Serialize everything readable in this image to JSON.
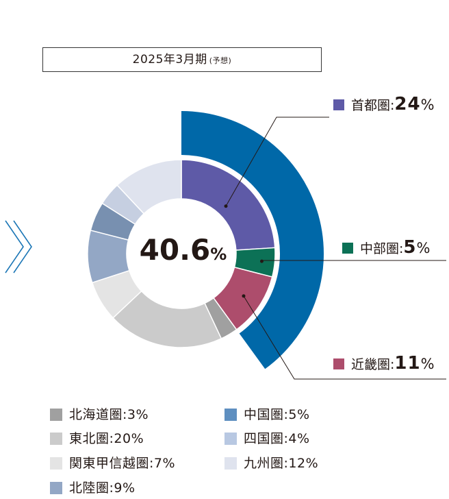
{
  "period": {
    "title": "2025年3月期",
    "note": "(予想)"
  },
  "center": {
    "value": "40.6",
    "unit": "%"
  },
  "colors": {
    "outer_arc": "#0068a8",
    "arrow": "#1b76b6",
    "leader": "#231815"
  },
  "chart_data": {
    "type": "pie",
    "title": "2025年3月期(予想)",
    "center_value": 40.6,
    "center_unit": "%",
    "start": "12 o'clock, clockwise",
    "outer_arc": {
      "covers": [
        "首都圏",
        "中部圏",
        "近畿圏"
      ],
      "value": 40
    },
    "slices": [
      {
        "name": "首都圏",
        "value": 24,
        "color": "#5e5aa7",
        "highlight": true
      },
      {
        "name": "中部圏",
        "value": 5,
        "color": "#0c7156",
        "highlight": true
      },
      {
        "name": "近畿圏",
        "value": 11,
        "color": "#ad4d6c",
        "highlight": true
      },
      {
        "name": "北海道圏",
        "value": 3,
        "color": "#a0a0a0",
        "highlight": false
      },
      {
        "name": "東北圏",
        "value": 20,
        "color": "#cbcbcb",
        "highlight": false
      },
      {
        "name": "関東甲信越圏",
        "value": 7,
        "color": "#e4e4e4",
        "highlight": false
      },
      {
        "name": "北陸圏",
        "value": 9,
        "color": "#93a7c5",
        "highlight": false
      },
      {
        "name": "中国圏",
        "value": 5,
        "color": "#7890b0",
        "highlight": false
      },
      {
        "name": "四国圏",
        "value": 4,
        "color": "#c6cfe1",
        "highlight": false
      },
      {
        "name": "九州圏",
        "value": 12,
        "color": "#dfe3ee",
        "highlight": false
      }
    ]
  },
  "callouts": [
    {
      "label": "首都圏:",
      "value": "24",
      "unit": "%",
      "color": "#5e5aa7"
    },
    {
      "label": "中部圏:",
      "value": "5",
      "unit": "%",
      "color": "#0c7156"
    },
    {
      "label": "近畿圏:",
      "value": "11",
      "unit": "%",
      "color": "#ad4d6c"
    }
  ],
  "legend": [
    {
      "label": "北海道圏:3%",
      "color": "#a0a0a0"
    },
    {
      "label": "東北圏:20%",
      "color": "#cbcbcb"
    },
    {
      "label": "関東甲信越圏:7%",
      "color": "#e4e4e4"
    },
    {
      "label": "北陸圏:9%",
      "color": "#93a7c5"
    },
    {
      "label": "中国圏:5%",
      "color": "#5e8fc0"
    },
    {
      "label": "四国圏:4%",
      "color": "#b8c8e2"
    },
    {
      "label": "九州圏:12%",
      "color": "#dfe3ee"
    }
  ]
}
